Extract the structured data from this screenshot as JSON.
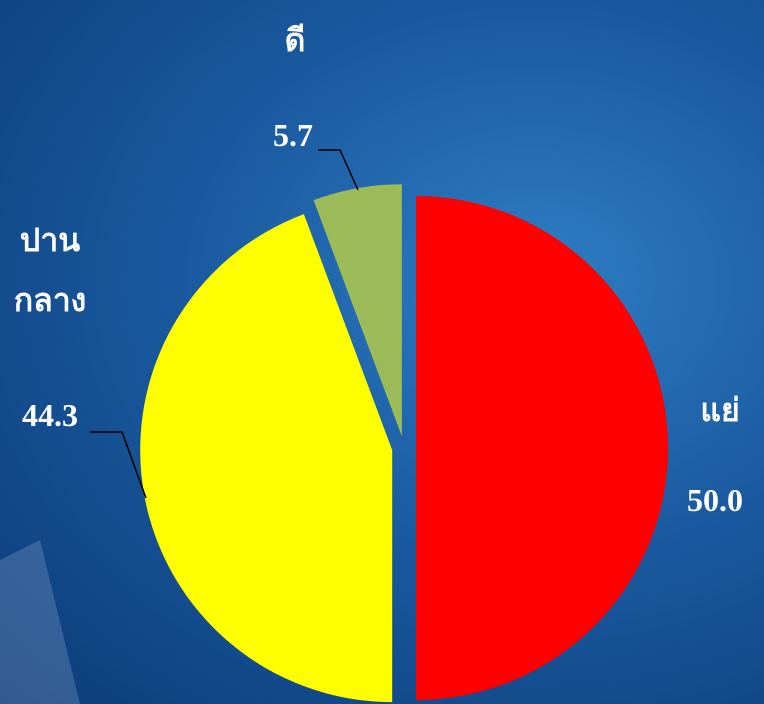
{
  "chart_data": {
    "type": "pie",
    "categories": [
      "แย่",
      "ปานกลาง",
      "ดี"
    ],
    "values": [
      50.0,
      44.3,
      5.7
    ],
    "value_labels": [
      "50.0",
      "44.3",
      "5.7"
    ],
    "colors": [
      "#ff0000",
      "#ffff00",
      "#9bbb59"
    ]
  }
}
